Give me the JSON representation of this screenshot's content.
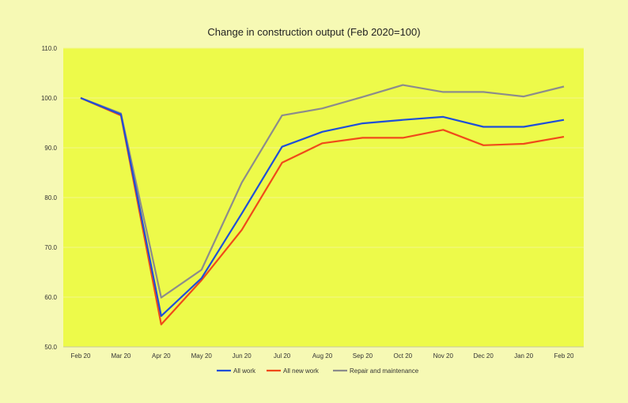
{
  "chart_data": {
    "type": "line",
    "title": "Change in construction output (Feb 2020=100)",
    "xlabel": "",
    "ylabel": "",
    "categories": [
      "Feb 20",
      "Mar 20",
      "Apr 20",
      "May 20",
      "Jun 20",
      "Jul 20",
      "Aug 20",
      "Sep 20",
      "Oct 20",
      "Nov 20",
      "Dec 20",
      "Jan 20",
      "Feb 20"
    ],
    "y_tick_labels": [
      "50.0",
      "60.0",
      "70.0",
      "80.0",
      "90.0",
      "100.0",
      "110.0"
    ],
    "ylim": [
      50,
      110
    ],
    "grid": true,
    "legend_position": "bottom",
    "series": [
      {
        "name": "All work",
        "color": "#1f4fd8",
        "values": [
          100,
          96.7,
          56.2,
          63.8,
          76.8,
          90.2,
          93.2,
          94.9,
          95.6,
          96.2,
          94.2,
          94.2,
          95.6
        ]
      },
      {
        "name": "All new work",
        "color": "#f04a1a",
        "values": [
          100,
          96.5,
          54.5,
          63.4,
          73.5,
          87.0,
          90.9,
          92.0,
          92.0,
          93.6,
          90.5,
          90.8,
          92.2
        ]
      },
      {
        "name": "Repair and maintenance",
        "color": "#8c8c8c",
        "values": [
          100,
          96.9,
          59.9,
          65.5,
          83.0,
          96.5,
          97.9,
          100.2,
          102.6,
          101.2,
          101.2,
          100.3,
          102.3
        ]
      }
    ],
    "colors": {
      "plot_background": "#edfa4a",
      "page_background": "#f6f9b4",
      "gridline": "#f3f58a"
    }
  }
}
